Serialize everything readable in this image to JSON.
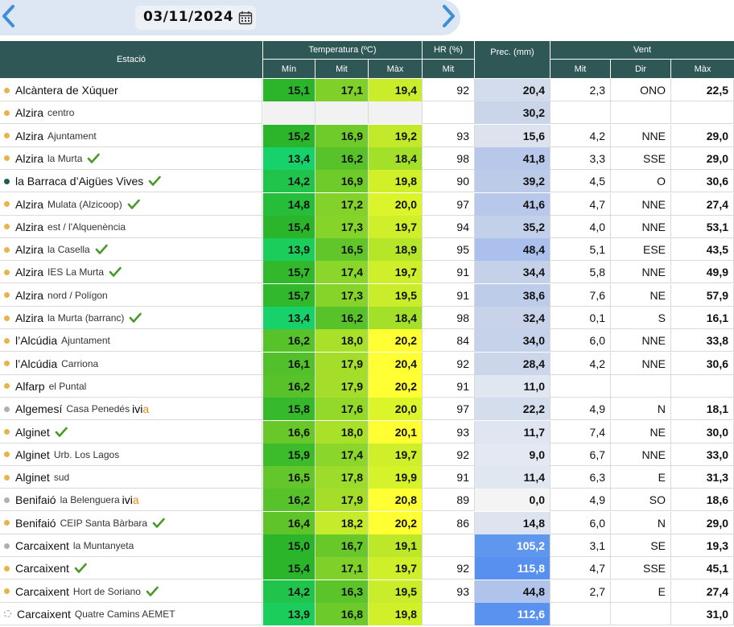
{
  "date": "03/11/2024",
  "icons": {
    "prev": "chevron-left-icon",
    "next": "chevron-right-icon",
    "calendar": "calendar-icon",
    "check": "check-icon"
  },
  "headers": {
    "station": "Estació",
    "temperature": "Temperatura (ºC)",
    "humidity": "HR (%)",
    "precipitation": "Prec. (mm)",
    "wind": "Vent",
    "min": "Mín",
    "avg": "Mit",
    "max": "Màx",
    "hr_avg": "Mit",
    "wind_avg": "Mit",
    "wind_dir": "Dir",
    "wind_max": "Màx"
  },
  "colors": {
    "header_bg": "#2f5755",
    "dot_orange": "#e8b44a",
    "dot_teal": "#1e5a57",
    "dot_gray": "#b0b0b0",
    "check_green": "#4a9a2a"
  },
  "rows": [
    {
      "name": "Alcàntera de Xúquer",
      "sub": "",
      "ivia": false,
      "check": false,
      "dot": "orange",
      "min": "15,1",
      "avg": "17,1",
      "max": "19,4",
      "hr": "92",
      "prec": "20,4",
      "wavg": "2,3",
      "wdir": "ONO",
      "wmax": "22,5",
      "cmin": "#2bb52b",
      "cavg": "#7fd12a",
      "cmax": "#c9ed2a",
      "cprec": "#d2dcec"
    },
    {
      "name": "Alzira",
      "sub": "centro",
      "ivia": false,
      "check": false,
      "dot": "orange",
      "min": "",
      "avg": "",
      "max": "",
      "hr": "",
      "prec": "30,2",
      "wavg": "",
      "wdir": "",
      "wmax": "",
      "cmin": "#f2f2f2",
      "cavg": "#f2f2f2",
      "cmax": "#f2f2f2",
      "cprec": "#cad5ea"
    },
    {
      "name": "Alzira",
      "sub": "Ajuntament",
      "ivia": false,
      "check": false,
      "dot": "orange",
      "min": "15,2",
      "avg": "16,9",
      "max": "19,2",
      "hr": "93",
      "prec": "15,6",
      "wavg": "4,2",
      "wdir": "NNE",
      "wmax": "29,0",
      "cmin": "#2bb52b",
      "cavg": "#6fcb2a",
      "cmax": "#c2ea2a",
      "cprec": "#dce3ef"
    },
    {
      "name": "Alzira",
      "sub": "la Murta",
      "ivia": false,
      "check": true,
      "dot": "orange",
      "min": "13,4",
      "avg": "16,2",
      "max": "18,4",
      "hr": "98",
      "prec": "41,8",
      "wavg": "3,3",
      "wdir": "SSE",
      "wmax": "29,0",
      "cmin": "#17d26a",
      "cavg": "#57c22a",
      "cmax": "#a4e02a",
      "cprec": "#b7c8ea"
    },
    {
      "name": "la Barraca d’Aigües Vives",
      "sub": "",
      "ivia": false,
      "check": true,
      "dot": "teal",
      "min": "14,2",
      "avg": "16,9",
      "max": "19,8",
      "hr": "90",
      "prec": "39,2",
      "wavg": "4,5",
      "wdir": "O",
      "wmax": "30,6",
      "cmin": "#21c44a",
      "cavg": "#6fcb2a",
      "cmax": "#d2f02a",
      "cprec": "#bccbe8"
    },
    {
      "name": "Alzira",
      "sub": "Mulata (Alzicoop)",
      "ivia": false,
      "check": true,
      "dot": "orange",
      "min": "14,8",
      "avg": "17,2",
      "max": "20,0",
      "hr": "97",
      "prec": "41,6",
      "wavg": "4,7",
      "wdir": "NNE",
      "wmax": "27,4",
      "cmin": "#25bd3a",
      "cavg": "#82d22a",
      "cmax": "#dcf42a",
      "cprec": "#b7c8ea"
    },
    {
      "name": "Alzira",
      "sub": "est / l'Alquenència",
      "ivia": false,
      "check": false,
      "dot": "orange",
      "min": "15,4",
      "avg": "17,3",
      "max": "19,7",
      "hr": "94",
      "prec": "35,2",
      "wavg": "4,0",
      "wdir": "NNE",
      "wmax": "53,1",
      "cmin": "#2bb52b",
      "cavg": "#86d42a",
      "cmax": "#cfef2a",
      "cprec": "#c3d0e9"
    },
    {
      "name": "Alzira",
      "sub": "la Casella",
      "ivia": false,
      "check": true,
      "dot": "orange",
      "min": "13,9",
      "avg": "16,5",
      "max": "18,9",
      "hr": "95",
      "prec": "48,4",
      "wavg": "5,1",
      "wdir": "ESE",
      "wmax": "43,5",
      "cmin": "#1bcd5a",
      "cavg": "#60c62a",
      "cmax": "#b5e62a",
      "cprec": "#abc0ec"
    },
    {
      "name": "Alzira",
      "sub": "IES La Murta",
      "ivia": false,
      "check": true,
      "dot": "orange",
      "min": "15,7",
      "avg": "17,4",
      "max": "19,7",
      "hr": "91",
      "prec": "34,4",
      "wavg": "5,8",
      "wdir": "NNE",
      "wmax": "49,9",
      "cmin": "#32b82b",
      "cavg": "#8ad62a",
      "cmax": "#cfef2a",
      "cprec": "#c5d1e9"
    },
    {
      "name": "Alzira",
      "sub": "nord / Polígon",
      "ivia": false,
      "check": false,
      "dot": "orange",
      "min": "15,7",
      "avg": "17,3",
      "max": "19,5",
      "hr": "91",
      "prec": "38,6",
      "wavg": "7,6",
      "wdir": "NE",
      "wmax": "57,9",
      "cmin": "#32b82b",
      "cavg": "#86d42a",
      "cmax": "#c9ed2a",
      "cprec": "#bdcce8"
    },
    {
      "name": "Alzira",
      "sub": "la Murta (barranc)",
      "ivia": false,
      "check": true,
      "dot": "orange",
      "min": "13,4",
      "avg": "16,2",
      "max": "18,4",
      "hr": "98",
      "prec": "32,4",
      "wavg": "0,1",
      "wdir": "S",
      "wmax": "16,1",
      "cmin": "#17d26a",
      "cavg": "#57c22a",
      "cmax": "#a4e02a",
      "cprec": "#c8d3e9"
    },
    {
      "name": "l’Alcúdia",
      "sub": "Ajuntament",
      "ivia": false,
      "check": false,
      "dot": "orange",
      "min": "16,2",
      "avg": "18,0",
      "max": "20,2",
      "hr": "84",
      "prec": "34,0",
      "wavg": "6,0",
      "wdir": "NNE",
      "wmax": "33,8",
      "cmin": "#57c22a",
      "cavg": "#a8e02a",
      "cmax": "#ffff33",
      "cprec": "#c6d2e9"
    },
    {
      "name": "l’Alcúdia",
      "sub": "Carriona",
      "ivia": false,
      "check": false,
      "dot": "orange",
      "min": "16,1",
      "avg": "17,9",
      "max": "20,4",
      "hr": "92",
      "prec": "28,4",
      "wavg": "4,2",
      "wdir": "NNE",
      "wmax": "30,6",
      "cmin": "#52c02a",
      "cavg": "#a4de2a",
      "cmax": "#ffff33",
      "cprec": "#ccd6ea"
    },
    {
      "name": "Alfarp",
      "sub": "el Puntal",
      "ivia": false,
      "check": false,
      "dot": "orange",
      "min": "16,2",
      "avg": "17,9",
      "max": "20,2",
      "hr": "91",
      "prec": "11,0",
      "wavg": "",
      "wdir": "",
      "wmax": "",
      "cmin": "#57c22a",
      "cavg": "#a4de2a",
      "cmax": "#ffff33",
      "cprec": "#e1e7f1"
    },
    {
      "name": "Algemesí",
      "sub": "Casa Penedés",
      "ivia": true,
      "check": false,
      "dot": "gray",
      "min": "15,8",
      "avg": "17,6",
      "max": "20,0",
      "hr": "97",
      "prec": "22,2",
      "wavg": "4,9",
      "wdir": "N",
      "wmax": "18,1",
      "cmin": "#36ba2b",
      "cavg": "#93d92a",
      "cmax": "#dcf42a",
      "cprec": "#d3ddec"
    },
    {
      "name": "Alginet",
      "sub": "",
      "ivia": false,
      "check": true,
      "dot": "orange",
      "min": "16,6",
      "avg": "18,0",
      "max": "20,1",
      "hr": "93",
      "prec": "11,7",
      "wavg": "7,4",
      "wdir": "NE",
      "wmax": "30,0",
      "cmin": "#68c82a",
      "cavg": "#a8e02a",
      "cmax": "#ffff33",
      "cprec": "#e0e6f1"
    },
    {
      "name": "Alginet",
      "sub": "Urb. Los Lagos",
      "ivia": false,
      "check": false,
      "dot": "orange",
      "min": "15,9",
      "avg": "17,4",
      "max": "19,7",
      "hr": "92",
      "prec": "9,0",
      "wavg": "6,7",
      "wdir": "NNE",
      "wmax": "33,0",
      "cmin": "#3cbc2b",
      "cavg": "#8ad62a",
      "cmax": "#cfef2a",
      "cprec": "#e3e8f2"
    },
    {
      "name": "Alginet",
      "sub": "sud",
      "ivia": false,
      "check": false,
      "dot": "orange",
      "min": "16,5",
      "avg": "17,8",
      "max": "19,9",
      "hr": "91",
      "prec": "11,4",
      "wavg": "6,3",
      "wdir": "E",
      "wmax": "31,3",
      "cmin": "#63c62a",
      "cavg": "#9cdc2a",
      "cmax": "#d6f22a",
      "cprec": "#e1e7f1"
    },
    {
      "name": "Benifaió",
      "sub": "la Belenguera",
      "ivia": true,
      "check": false,
      "dot": "gray",
      "min": "16,2",
      "avg": "17,9",
      "max": "20,8",
      "hr": "89",
      "prec": "0,0",
      "wavg": "4,9",
      "wdir": "SO",
      "wmax": "18,6",
      "cmin": "#57c22a",
      "cavg": "#a4de2a",
      "cmax": "#ffff33",
      "cprec": "#f4f4f4"
    },
    {
      "name": "Benifaió",
      "sub": "CEIP Santa Bàrbara",
      "ivia": false,
      "check": true,
      "dot": "orange",
      "min": "16,4",
      "avg": "18,2",
      "max": "20,2",
      "hr": "86",
      "prec": "14,8",
      "wavg": "6,0",
      "wdir": "N",
      "wmax": "29,0",
      "cmin": "#5ec42a",
      "cavg": "#c5ec2a",
      "cmax": "#ffff33",
      "cprec": "#dde4f0"
    },
    {
      "name": "Carcaixent",
      "sub": "la Muntanyeta",
      "ivia": false,
      "check": false,
      "dot": "gray",
      "min": "15,0",
      "avg": "16,7",
      "max": "19,1",
      "hr": "",
      "prec": "105,2",
      "wavg": "3,1",
      "wdir": "SE",
      "wmax": "19,3",
      "cmin": "#2bb52b",
      "cavg": "#68c82a",
      "cmax": "#bde82a",
      "cprec": "#5f96ee"
    },
    {
      "name": "Carcaixent",
      "sub": "",
      "ivia": false,
      "check": true,
      "dot": "orange",
      "min": "15,4",
      "avg": "17,1",
      "max": "19,7",
      "hr": "92",
      "prec": "115,8",
      "wavg": "4,7",
      "wdir": "SSE",
      "wmax": "45,1",
      "cmin": "#2bb52b",
      "cavg": "#7fd12a",
      "cmax": "#cfef2a",
      "cprec": "#5790ef"
    },
    {
      "name": "Carcaixent",
      "sub": "Hort de Soriano",
      "ivia": false,
      "check": true,
      "dot": "orange",
      "min": "14,2",
      "avg": "16,3",
      "max": "19,5",
      "hr": "93",
      "prec": "44,8",
      "wavg": "2,7",
      "wdir": "E",
      "wmax": "27,4",
      "cmin": "#21c44a",
      "cavg": "#5ac42a",
      "cmax": "#c9ed2a",
      "cprec": "#b0c4eb"
    },
    {
      "name": "Carcaixent",
      "sub": "Quatre Camins AEMET",
      "ivia": false,
      "check": false,
      "dot": "white",
      "min": "13,9",
      "avg": "16,8",
      "max": "19,8",
      "hr": "",
      "prec": "112,6",
      "wavg": "",
      "wdir": "",
      "wmax": "31,0",
      "cmin": "#1bcd5a",
      "cavg": "#6ccb2a",
      "cmax": "#d2f02a",
      "cprec": "#5a92ef"
    }
  ]
}
